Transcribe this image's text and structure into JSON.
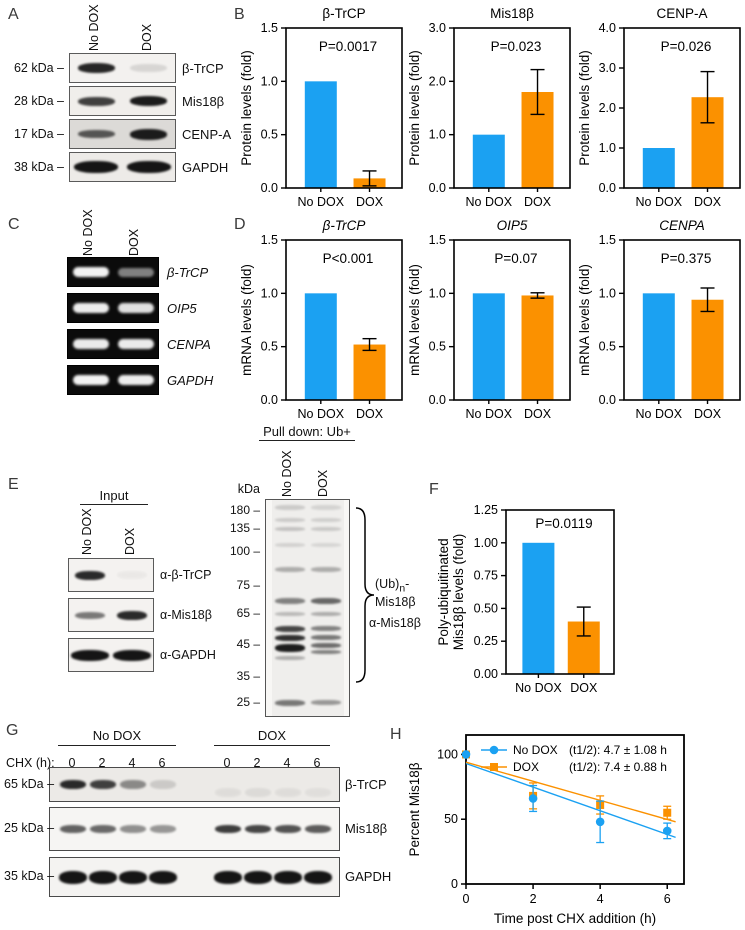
{
  "colors": {
    "no_dox_blue": "#1BA1F2",
    "dox_orange": "#FB9100",
    "axis_black": "#000000"
  },
  "chart_data": [
    {
      "type": "bar",
      "title": "β-TrCP",
      "title_italic": false,
      "p_label": "P=0.0017",
      "ylabel_lines": [
        "Protein levels (fold)"
      ],
      "ylim": [
        0,
        1.5
      ],
      "yticks": [
        "0.0",
        "0.5",
        "1.0",
        "1.5"
      ],
      "categories": [
        "No DOX",
        "DOX"
      ],
      "values": [
        1.0,
        0.09
      ],
      "errors": [
        0,
        0.07
      ]
    },
    {
      "type": "bar",
      "title": "Mis18β",
      "title_italic": false,
      "p_label": "P=0.023",
      "ylabel_lines": [
        "Protein levels (fold)"
      ],
      "ylim": [
        0,
        3.0
      ],
      "yticks": [
        "0.0",
        "1.0",
        "2.0",
        "3.0"
      ],
      "categories": [
        "No DOX",
        "DOX"
      ],
      "values": [
        1.0,
        1.8
      ],
      "errors": [
        0,
        0.42
      ]
    },
    {
      "type": "bar",
      "title": "CENP-A",
      "title_italic": false,
      "p_label": "P=0.026",
      "ylabel_lines": [
        "Protein levels (fold)"
      ],
      "ylim": [
        0,
        4.0
      ],
      "yticks": [
        "0.0",
        "1.0",
        "2.0",
        "3.0",
        "4.0"
      ],
      "categories": [
        "No DOX",
        "DOX"
      ],
      "values": [
        1.0,
        2.27
      ],
      "errors": [
        0,
        0.64
      ]
    },
    {
      "type": "bar",
      "title": "β-TrCP",
      "title_italic": true,
      "p_label": "P<0.001",
      "ylabel_lines": [
        "mRNA levels (fold)"
      ],
      "ylim": [
        0,
        1.5
      ],
      "yticks": [
        "0.0",
        "0.5",
        "1.0",
        "1.5"
      ],
      "categories": [
        "No DOX",
        "DOX"
      ],
      "values": [
        1.0,
        0.52
      ],
      "errors": [
        0,
        0.055
      ]
    },
    {
      "type": "bar",
      "title": "OIP5",
      "title_italic": true,
      "p_label": "P=0.07",
      "ylabel_lines": [
        "mRNA levels (fold)"
      ],
      "ylim": [
        0,
        1.5
      ],
      "yticks": [
        "0.0",
        "0.5",
        "1.0",
        "1.5"
      ],
      "categories": [
        "No DOX",
        "DOX"
      ],
      "values": [
        1.0,
        0.98
      ],
      "errors": [
        0,
        0.025
      ]
    },
    {
      "type": "bar",
      "title": "CENPA",
      "title_italic": true,
      "p_label": "P=0.375",
      "ylabel_lines": [
        "mRNA levels (fold)"
      ],
      "ylim": [
        0,
        1.5
      ],
      "yticks": [
        "0.0",
        "0.5",
        "1.0",
        "1.5"
      ],
      "categories": [
        "No DOX",
        "DOX"
      ],
      "values": [
        1.0,
        0.94
      ],
      "errors": [
        0,
        0.11
      ]
    },
    {
      "type": "bar",
      "variant": "large",
      "title": "",
      "title_italic": false,
      "p_label": "P=0.0119",
      "ylabel_lines": [
        "Poly-ubiquitinated",
        "Mis18β levels (fold)"
      ],
      "ylim": [
        0,
        1.25
      ],
      "yticks": [
        "0.00",
        "0.25",
        "0.50",
        "0.75",
        "1.00",
        "1.25"
      ],
      "categories": [
        "No DOX",
        "DOX"
      ],
      "values": [
        1.0,
        0.4
      ],
      "errors": [
        0,
        0.11
      ]
    },
    {
      "type": "line",
      "xlabel": "Time post CHX addition (h)",
      "ylabel": "Percent Mis18β",
      "xlim": [
        0,
        6.5
      ],
      "xticks": [
        "0",
        "2",
        "4",
        "6"
      ],
      "ylim": [
        0,
        115
      ],
      "yticks": [
        "0",
        "50",
        "100"
      ],
      "legend_position": "top-left-inside",
      "grid": false,
      "series": [
        {
          "name": "No DOX",
          "halflife": "(t1/2): 4.7 ± 1.08 h",
          "marker": "circle",
          "color_key": "no_dox_blue",
          "x": [
            0,
            2,
            4,
            6
          ],
          "y": [
            100,
            66,
            48,
            41
          ],
          "err": [
            0,
            10,
            16,
            6
          ],
          "fit": {
            "x": [
              0,
              6.25
            ],
            "y": [
              93,
              36
            ]
          }
        },
        {
          "name": "DOX",
          "halflife": "(t1/2): 7.4 ± 0.88 h",
          "marker": "square",
          "color_key": "dox_orange",
          "x": [
            0,
            2,
            4,
            6
          ],
          "y": [
            100,
            68,
            61,
            55
          ],
          "err": [
            0,
            10,
            7,
            5
          ],
          "fit": {
            "x": [
              0,
              6.25
            ],
            "y": [
              94,
              48
            ]
          }
        }
      ]
    }
  ],
  "panels": {
    "A": {
      "letter": "A",
      "lane_headers": [
        "No DOX",
        "DOX"
      ],
      "rows": [
        {
          "kda": "62 kDa –",
          "protein": "β-TrCP",
          "bg": "#f3f1ef",
          "bands": [
            {
              "a": 0.92,
              "h": 10
            },
            {
              "a": 0.12,
              "h": 8
            }
          ]
        },
        {
          "kda": "28 kDa –",
          "protein": "Mis18β",
          "bg": "#f0eeeb",
          "bands": [
            {
              "a": 0.8,
              "h": 9
            },
            {
              "a": 0.97,
              "h": 10
            }
          ]
        },
        {
          "kda": "17 kDa –",
          "protein": "CENP-A",
          "bg": "#dcdad7",
          "bands": [
            {
              "a": 0.68,
              "h": 8
            },
            {
              "a": 0.97,
              "h": 11
            }
          ]
        },
        {
          "kda": "38 kDa –",
          "protein": "GAPDH",
          "bg": "#edebe8",
          "band_w": 44,
          "bands": [
            {
              "a": 1,
              "h": 12
            },
            {
              "a": 1,
              "h": 12
            }
          ]
        }
      ]
    },
    "B": {
      "letter": "B"
    },
    "C": {
      "letter": "C",
      "lane_headers": [
        "No DOX",
        "DOX"
      ],
      "rows": [
        {
          "gene": "β-TrCP",
          "bands": [
            {
              "a": 0.95,
              "h": 10
            },
            {
              "a": 0.48,
              "h": 9
            }
          ]
        },
        {
          "gene": "OIP5",
          "bands": [
            {
              "a": 0.93,
              "h": 10
            },
            {
              "a": 0.88,
              "h": 10
            }
          ]
        },
        {
          "gene": "CENPA",
          "bands": [
            {
              "a": 0.92,
              "h": 10
            },
            {
              "a": 0.92,
              "h": 10
            }
          ]
        },
        {
          "gene": "GAPDH",
          "bands": [
            {
              "a": 0.95,
              "h": 10
            },
            {
              "a": 0.93,
              "h": 10
            }
          ]
        }
      ]
    },
    "D": {
      "letter": "D"
    },
    "E": {
      "letter": "E",
      "input": {
        "header": "Input",
        "lane_headers": [
          "No DOX",
          "DOX"
        ],
        "rows": [
          {
            "antibody": "α-β-TrCP",
            "bands": [
              {
                "a": 0.9,
                "h": 9
              },
              {
                "a": 0.04,
                "h": 8
              }
            ]
          },
          {
            "antibody": "α-Mis18β",
            "bands": [
              {
                "a": 0.55,
                "h": 7
              },
              {
                "a": 0.9,
                "h": 9
              }
            ]
          },
          {
            "antibody": "α-GAPDH",
            "band_w": 38,
            "bands": [
              {
                "a": 1,
                "h": 11
              },
              {
                "a": 1,
                "h": 11
              }
            ]
          }
        ]
      },
      "pulldown": {
        "header": "Pull down: Ub+",
        "kda_unit": "kDa",
        "lane_headers": [
          "No DOX",
          "DOX"
        ],
        "ladder": [
          {
            "label": "180 –",
            "p": 5
          },
          {
            "label": "135 –",
            "p": 13.5
          },
          {
            "label": "100 –",
            "p": 24
          },
          {
            "label": "75 –",
            "p": 40
          },
          {
            "label": "65 –",
            "p": 53
          },
          {
            "label": "45 –",
            "p": 67
          },
          {
            "label": "35 –",
            "p": 82
          },
          {
            "label": "25 –",
            "p": 94
          }
        ],
        "lanes": [
          {
            "bands": [
              {
                "p": 2.5,
                "a": 0.16,
                "h": 5
              },
              {
                "p": 8.5,
                "a": 0.16,
                "h": 4
              },
              {
                "p": 12.5,
                "a": 0.2,
                "h": 4
              },
              {
                "p": 20,
                "a": 0.13,
                "h": 4
              },
              {
                "p": 31,
                "a": 0.3,
                "h": 5
              },
              {
                "p": 45.5,
                "a": 0.5,
                "h": 6
              },
              {
                "p": 52,
                "a": 0.24,
                "h": 4
              },
              {
                "p": 58.5,
                "a": 0.78,
                "h": 6
              },
              {
                "p": 62.5,
                "a": 0.88,
                "h": 6
              },
              {
                "p": 66.5,
                "a": 0.97,
                "h": 8
              },
              {
                "p": 72,
                "a": 0.3,
                "h": 4
              },
              {
                "p": 92.5,
                "a": 0.55,
                "h": 6
              }
            ]
          },
          {
            "bands": [
              {
                "p": 2.5,
                "a": 0.12,
                "h": 5
              },
              {
                "p": 8.5,
                "a": 0.14,
                "h": 4
              },
              {
                "p": 12.5,
                "a": 0.17,
                "h": 4
              },
              {
                "p": 20,
                "a": 0.11,
                "h": 4
              },
              {
                "p": 31,
                "a": 0.3,
                "h": 5
              },
              {
                "p": 45.5,
                "a": 0.62,
                "h": 6
              },
              {
                "p": 52,
                "a": 0.3,
                "h": 4
              },
              {
                "p": 58.5,
                "a": 0.5,
                "h": 5
              },
              {
                "p": 62.5,
                "a": 0.55,
                "h": 5
              },
              {
                "p": 66.3,
                "a": 0.6,
                "h": 5
              },
              {
                "p": 69.5,
                "a": 0.5,
                "h": 4
              },
              {
                "p": 92.5,
                "a": 0.4,
                "h": 5
              }
            ]
          }
        ],
        "ub_pre": "(Ub)",
        "ub_sub": "n",
        "ub_hyphen": "-",
        "ub_protein": "Mis18β",
        "antibody_label": "α-Mis18β"
      }
    },
    "F": {
      "letter": "F"
    },
    "G": {
      "letter": "G",
      "chx_label": "CHX (h):",
      "groups": [
        {
          "name": "No DOX",
          "timepoints": [
            "0",
            "2",
            "4",
            "6"
          ]
        },
        {
          "name": "DOX",
          "timepoints": [
            "0",
            "2",
            "4",
            "6"
          ]
        }
      ],
      "rows": [
        {
          "kda": "65 kDa –",
          "protein": "β-TrCP",
          "bg": "#eceae7",
          "h": 35,
          "band_h": 9,
          "band_w": 26,
          "dy2": 8,
          "bands": [
            [
              0.9,
              0.8,
              0.45,
              0.15
            ],
            [
              0.06,
              0.07,
              0.06,
              0.05
            ]
          ]
        },
        {
          "kda": "25 kDa –",
          "protein": "Mis18β",
          "bg": "#f6f5f3",
          "h": 44,
          "band_h": 8,
          "band_w": 26,
          "bands": [
            [
              0.65,
              0.62,
              0.45,
              0.42
            ],
            [
              0.82,
              0.78,
              0.72,
              0.68
            ]
          ]
        },
        {
          "kda": "35 kDa –",
          "protein": "GAPDH",
          "bg": "#f4f3f1",
          "h": 40,
          "band_h": 13,
          "band_w": 28,
          "bands": [
            [
              1,
              1,
              1,
              1
            ],
            [
              1,
              1,
              1,
              1
            ]
          ]
        }
      ]
    },
    "H": {
      "letter": "H"
    }
  }
}
